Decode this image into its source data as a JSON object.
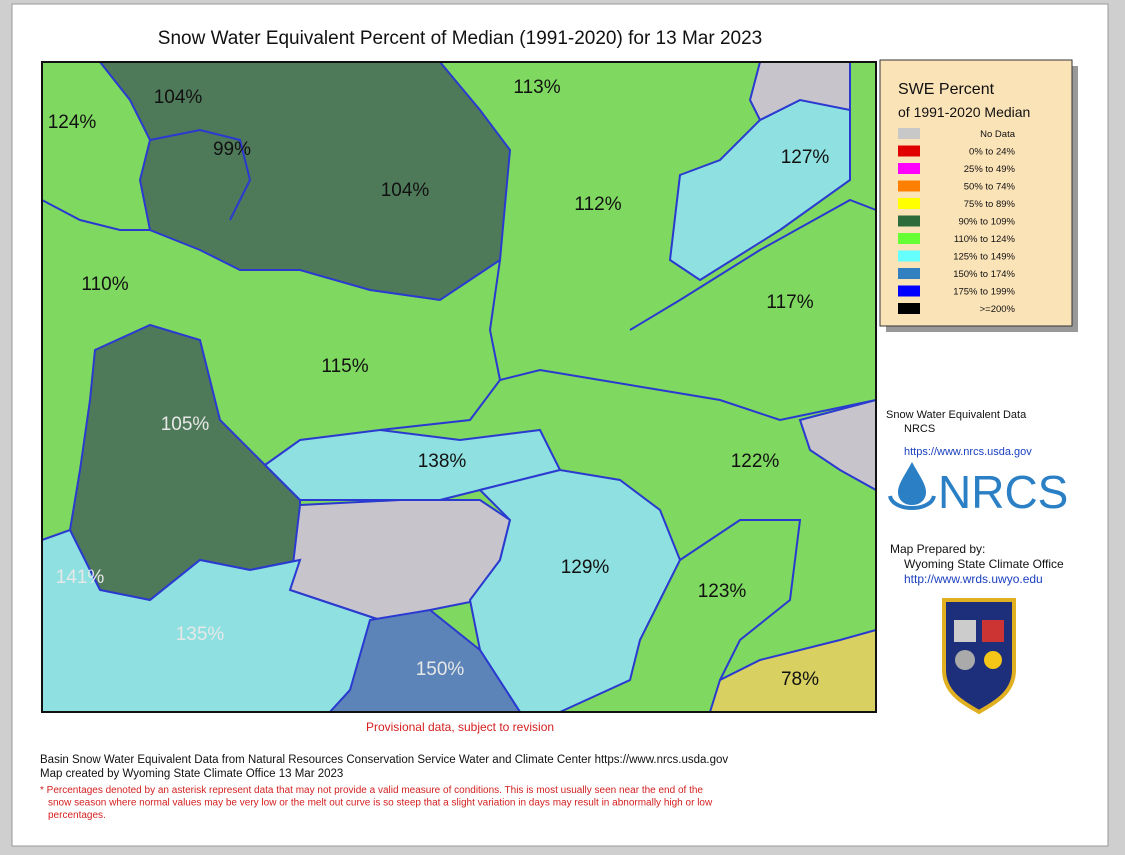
{
  "title": "Snow Water Equivalent Percent of Median (1991-2020)  for 13 Mar 2023",
  "basins": [
    {
      "label": "104%"
    },
    {
      "label": "99%"
    },
    {
      "label": "124%"
    },
    {
      "label": "104%"
    },
    {
      "label": "113%"
    },
    {
      "label": "112%"
    },
    {
      "label": "127%"
    },
    {
      "label": "110%"
    },
    {
      "label": "117%"
    },
    {
      "label": "115%"
    },
    {
      "label": "105%"
    },
    {
      "label": "138%"
    },
    {
      "label": "122%"
    },
    {
      "label": "129%"
    },
    {
      "label": "123%"
    },
    {
      "label": "141%"
    },
    {
      "label": "135%"
    },
    {
      "label": "150%"
    },
    {
      "label": "78%"
    }
  ],
  "legend": {
    "title": "SWE Percent",
    "subtitle": "of 1991-2020 Median",
    "items": [
      {
        "label": "No Data",
        "color": "#c8c8c8"
      },
      {
        "label": "0% to  24%",
        "color": "#e00000"
      },
      {
        "label": "25% to  49%",
        "color": "#ff00ff"
      },
      {
        "label": "50% to  74%",
        "color": "#ff8000"
      },
      {
        "label": "75% to  89%",
        "color": "#ffff00"
      },
      {
        "label": "90% to 109%",
        "color": "#2e6b3a"
      },
      {
        "label": "110% to 124%",
        "color": "#66ff33"
      },
      {
        "label": "125% to 149%",
        "color": "#66ffff"
      },
      {
        "label": "150% to 174%",
        "color": "#3380c0"
      },
      {
        "label": "175% to 199%",
        "color": "#0000ff"
      },
      {
        "label": ">=200%",
        "color": "#000000"
      }
    ]
  },
  "source": {
    "heading": "Snow Water Equivalent Data",
    "agency": "NRCS",
    "url": "https://www.nrcs.usda.gov",
    "logo": "NRCS"
  },
  "prepared": {
    "heading": "Map Prepared by:",
    "office": "Wyoming State Climate Office",
    "url": "http://www.wrds.uwyo.edu"
  },
  "provisional": "Provisional data, subject to revision",
  "footer": [
    "Basin Snow Water Equivalent Data from Natural Resources Conservation Service Water and Climate Center https://www.nrcs.usda.gov",
    "Map created by Wyoming State Climate Office 13 Mar 2023"
  ],
  "note": [
    "* Percentages denoted by an asterisk represent data that may not provide a valid measure of conditions.  This is most usually seen near the end of the",
    "snow season where normal values may be very low or the melt out curve is so steep that a slight variation in days may result in abnormally high or low",
    "percentages."
  ]
}
